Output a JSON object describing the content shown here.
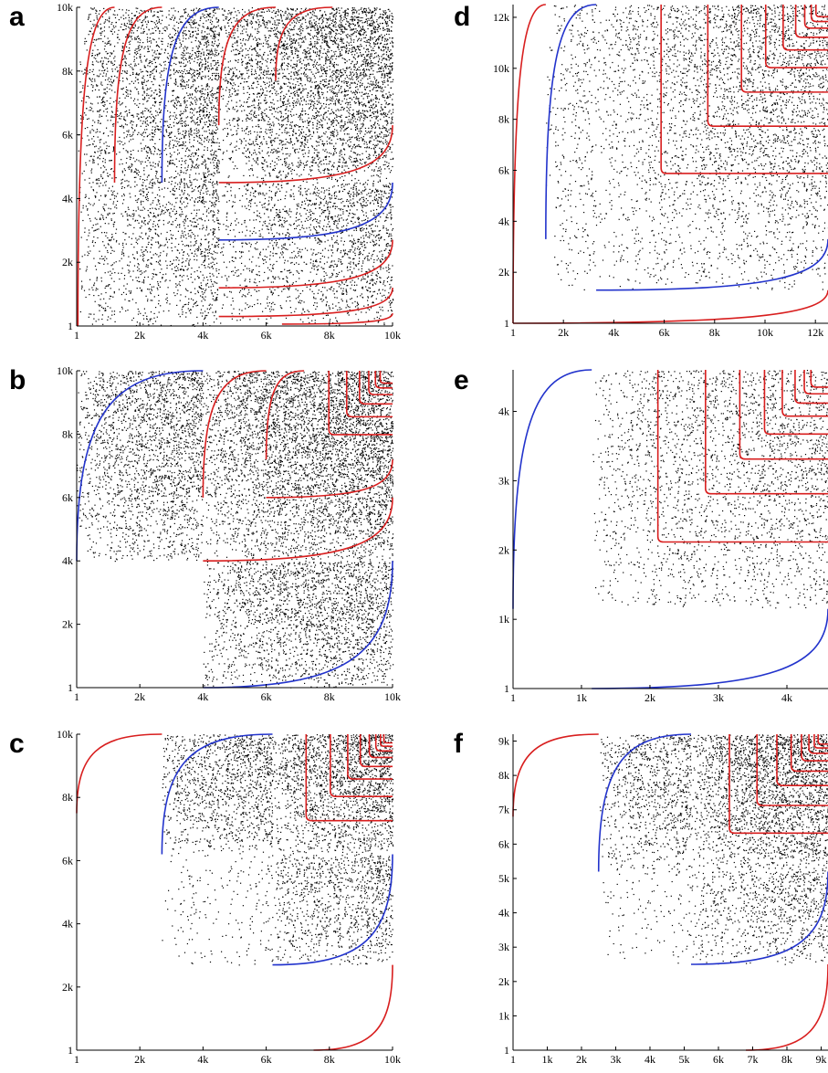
{
  "colors": {
    "red": "#d81e1e",
    "blue": "#2233cc",
    "dots": "#000000"
  },
  "chart_data": [
    {
      "panel": "a",
      "type": "scatter",
      "xlim": [
        1,
        10000
      ],
      "ylim": [
        1,
        10000
      ],
      "xticks": [
        "1",
        "2k",
        "4k",
        "6k",
        "8k",
        "10k"
      ],
      "yticks": [
        "1",
        "2k",
        "4k",
        "6k",
        "8k",
        "10k"
      ],
      "xtick_values": [
        1,
        2000,
        4000,
        6000,
        8000,
        10000
      ],
      "ytick_values": [
        1,
        2000,
        4000,
        6000,
        8000,
        10000
      ],
      "blocks": [
        {
          "x0": 50,
          "y0": 1,
          "x1": 1200,
          "y1": 10000,
          "density": 0.45
        },
        {
          "x0": 1200,
          "y0": 1,
          "x1": 2700,
          "y1": 10000,
          "density": 0.6
        },
        {
          "x0": 2700,
          "y0": 1,
          "x1": 4500,
          "y1": 10000,
          "density": 0.8
        },
        {
          "x0": 4500,
          "y0": 1,
          "x1": 10000,
          "y1": 4500,
          "density": 0.55
        },
        {
          "x0": 4500,
          "y0": 4500,
          "x1": 10000,
          "y1": 10000,
          "density": 1.0
        }
      ],
      "curves": [
        {
          "color": "red",
          "x0": 40,
          "x1": 1200,
          "y0": 1,
          "y1": 10000,
          "bend": "up"
        },
        {
          "color": "red",
          "x0": 1200,
          "x1": 2700,
          "y0": 4500,
          "y1": 10000,
          "bend": "up"
        },
        {
          "color": "blue",
          "x0": 2700,
          "x1": 4500,
          "y0": 4500,
          "y1": 10000,
          "bend": "up"
        },
        {
          "color": "red",
          "x0": 4500,
          "x1": 6300,
          "y0": 6300,
          "y1": 10000,
          "bend": "up"
        },
        {
          "color": "red",
          "x0": 6300,
          "x1": 8100,
          "y0": 7700,
          "y1": 10000,
          "bend": "up"
        },
        {
          "color": "red",
          "x0": 4500,
          "x1": 10000,
          "y0": 4500,
          "y1": 6300,
          "bend": "right"
        },
        {
          "color": "blue",
          "x0": 4500,
          "x1": 10000,
          "y0": 2700,
          "y1": 4500,
          "bend": "right"
        },
        {
          "color": "red",
          "x0": 4500,
          "x1": 10000,
          "y0": 1200,
          "y1": 2700,
          "bend": "right"
        },
        {
          "color": "red",
          "x0": 4500,
          "x1": 10000,
          "y0": 300,
          "y1": 1200,
          "bend": "right"
        },
        {
          "color": "red",
          "x0": 6500,
          "x1": 10000,
          "y0": 60,
          "y1": 400,
          "bend": "right"
        }
      ]
    },
    {
      "panel": "b",
      "type": "scatter",
      "xlim": [
        1,
        10000
      ],
      "ylim": [
        1,
        10000
      ],
      "xticks": [
        "1",
        "2k",
        "4k",
        "6k",
        "8k",
        "10k"
      ],
      "yticks": [
        "1",
        "2k",
        "4k",
        "6k",
        "8k",
        "10k"
      ],
      "xtick_values": [
        1,
        2000,
        4000,
        6000,
        8000,
        10000
      ],
      "ytick_values": [
        1,
        2000,
        4000,
        6000,
        8000,
        10000
      ],
      "blocks": [
        {
          "x0": 1,
          "y0": 4000,
          "x1": 4000,
          "y1": 10000,
          "density": 0.7
        },
        {
          "x0": 4000,
          "y0": 1,
          "x1": 10000,
          "y1": 4000,
          "density": 0.7
        },
        {
          "x0": 4000,
          "y0": 4000,
          "x1": 10000,
          "y1": 10000,
          "density": 1.0
        }
      ],
      "curves": [
        {
          "color": "blue",
          "x0": 1,
          "x1": 4000,
          "y0": 4000,
          "y1": 10000,
          "bend": "up"
        },
        {
          "color": "blue",
          "x0": 4000,
          "x1": 10000,
          "y0": 1,
          "y1": 4000,
          "bend": "right"
        },
        {
          "color": "red",
          "x0": 4000,
          "x1": 6000,
          "y0": 6000,
          "y1": 10000,
          "bend": "up"
        },
        {
          "color": "red",
          "x0": 4000,
          "x1": 10000,
          "y0": 4000,
          "y1": 6000,
          "bend": "right"
        },
        {
          "color": "red",
          "x0": 6000,
          "x1": 7200,
          "y0": 7200,
          "y1": 10000,
          "bend": "up"
        },
        {
          "color": "red",
          "x0": 6000,
          "x1": 10000,
          "y0": 6000,
          "y1": 7200,
          "bend": "right"
        }
      ],
      "nested_boxes": {
        "color": "red",
        "x_start": 7200,
        "y_start": 7200,
        "xmax": 10000,
        "ymax": 10000,
        "count": 6
      }
    },
    {
      "panel": "c",
      "type": "scatter",
      "xlim": [
        1,
        10000
      ],
      "ylim": [
        1,
        10000
      ],
      "xticks": [
        "1",
        "2k",
        "4k",
        "6k",
        "8k",
        "10k"
      ],
      "yticks": [
        "1",
        "2k",
        "4k",
        "6k",
        "8k",
        "10k"
      ],
      "xtick_values": [
        1,
        2000,
        4000,
        6000,
        8000,
        10000
      ],
      "ytick_values": [
        1,
        2000,
        4000,
        6000,
        8000,
        10000
      ],
      "blocks": [
        {
          "x0": 2700,
          "y0": 2700,
          "x1": 6200,
          "y1": 6200,
          "density": 0.12
        },
        {
          "x0": 2700,
          "y0": 6200,
          "x1": 6200,
          "y1": 10000,
          "density": 0.7
        },
        {
          "x0": 6200,
          "y0": 2700,
          "x1": 10000,
          "y1": 6200,
          "density": 0.6
        },
        {
          "x0": 6200,
          "y0": 6200,
          "x1": 10000,
          "y1": 10000,
          "density": 1.0
        }
      ],
      "curves": [
        {
          "color": "red",
          "x0": 1,
          "x1": 2700,
          "y0": 7500,
          "y1": 10000,
          "bend": "up"
        },
        {
          "color": "red",
          "x0": 7500,
          "x1": 10000,
          "y0": 1,
          "y1": 2700,
          "bend": "right"
        },
        {
          "color": "blue",
          "x0": 2700,
          "x1": 6200,
          "y0": 6200,
          "y1": 10000,
          "bend": "up"
        },
        {
          "color": "blue",
          "x0": 6200,
          "x1": 10000,
          "y0": 2700,
          "y1": 6200,
          "bend": "right"
        }
      ],
      "nested_boxes": {
        "color": "red",
        "x_start": 6200,
        "y_start": 6200,
        "xmax": 10000,
        "ymax": 10000,
        "count": 8
      }
    },
    {
      "panel": "d",
      "type": "scatter",
      "xlim": [
        1,
        12500
      ],
      "ylim": [
        1,
        12500
      ],
      "xticks": [
        "1",
        "2k",
        "4k",
        "6k",
        "8k",
        "10k",
        "12k"
      ],
      "yticks": [
        "1",
        "2k",
        "4k",
        "6k",
        "8k",
        "10k",
        "12k"
      ],
      "xtick_values": [
        1,
        2000,
        4000,
        6000,
        8000,
        10000,
        12000
      ],
      "ytick_values": [
        1,
        2000,
        4000,
        6000,
        8000,
        10000,
        12000
      ],
      "blocks": [
        {
          "x0": 1300,
          "y0": 1300,
          "x1": 3300,
          "y1": 12500,
          "density": 0.2
        },
        {
          "x0": 3300,
          "y0": 1300,
          "x1": 12500,
          "y1": 3300,
          "density": 0.2
        },
        {
          "x0": 3300,
          "y0": 3300,
          "x1": 12500,
          "y1": 12500,
          "density": 0.45
        }
      ],
      "curves": [
        {
          "color": "red",
          "x0": 1,
          "x1": 1300,
          "y0": 1,
          "y1": 12500,
          "bend": "up"
        },
        {
          "color": "red",
          "x0": 1,
          "x1": 12500,
          "y0": 1,
          "y1": 1300,
          "bend": "right"
        },
        {
          "color": "blue",
          "x0": 1300,
          "x1": 3300,
          "y0": 3300,
          "y1": 12500,
          "bend": "up"
        },
        {
          "color": "blue",
          "x0": 3300,
          "x1": 12500,
          "y0": 1300,
          "y1": 3300,
          "bend": "right"
        }
      ],
      "nested_boxes": {
        "color": "red",
        "x_start": 3300,
        "y_start": 3300,
        "xmax": 12500,
        "ymax": 12500,
        "count": 9
      }
    },
    {
      "panel": "e",
      "type": "scatter",
      "xlim": [
        1,
        4600
      ],
      "ylim": [
        1,
        4600
      ],
      "xticks": [
        "1",
        "1k",
        "2k",
        "3k",
        "4k"
      ],
      "yticks": [
        "1",
        "1k",
        "2k",
        "3k",
        "4k"
      ],
      "xtick_values": [
        1,
        1000,
        2000,
        3000,
        4000
      ],
      "ytick_values": [
        1,
        1000,
        2000,
        3000,
        4000
      ],
      "blocks": [
        {
          "x0": 1150,
          "y0": 1150,
          "x1": 4600,
          "y1": 4600,
          "density": 0.35
        }
      ],
      "curves": [
        {
          "color": "blue",
          "x0": 1,
          "x1": 1150,
          "y0": 1150,
          "y1": 4600,
          "bend": "up"
        },
        {
          "color": "blue",
          "x0": 1150,
          "x1": 4600,
          "y0": 1,
          "y1": 1150,
          "bend": "right"
        }
      ],
      "nested_boxes": {
        "color": "red",
        "x_start": 1150,
        "y_start": 1150,
        "xmax": 4600,
        "ymax": 4600,
        "count": 8
      }
    },
    {
      "panel": "f",
      "type": "scatter",
      "xlim": [
        1,
        9200
      ],
      "ylim": [
        1,
        9200
      ],
      "xticks": [
        "1",
        "1k",
        "2k",
        "3k",
        "4k",
        "5k",
        "6k",
        "7k",
        "8k",
        "9k"
      ],
      "yticks": [
        "1",
        "1k",
        "2k",
        "3k",
        "4k",
        "5k",
        "6k",
        "7k",
        "8k",
        "9k"
      ],
      "xtick_values": [
        1,
        1000,
        2000,
        3000,
        4000,
        5000,
        6000,
        7000,
        8000,
        9000
      ],
      "ytick_values": [
        1,
        1000,
        2000,
        3000,
        4000,
        5000,
        6000,
        7000,
        8000,
        9000
      ],
      "blocks": [
        {
          "x0": 2500,
          "y0": 2500,
          "x1": 5200,
          "y1": 5200,
          "density": 0.1
        },
        {
          "x0": 2500,
          "y0": 5200,
          "x1": 5200,
          "y1": 9200,
          "density": 0.55
        },
        {
          "x0": 5200,
          "y0": 2500,
          "x1": 9200,
          "y1": 5200,
          "density": 0.5
        },
        {
          "x0": 5200,
          "y0": 5200,
          "x1": 9200,
          "y1": 9200,
          "density": 1.0
        }
      ],
      "curves": [
        {
          "color": "red",
          "x0": 1,
          "x1": 2500,
          "y0": 6800,
          "y1": 9200,
          "bend": "up"
        },
        {
          "color": "red",
          "x0": 6800,
          "x1": 9200,
          "y0": 1,
          "y1": 2500,
          "bend": "right"
        },
        {
          "color": "blue",
          "x0": 2500,
          "x1": 5200,
          "y0": 5200,
          "y1": 9200,
          "bend": "up"
        },
        {
          "color": "blue",
          "x0": 5200,
          "x1": 9200,
          "y0": 2500,
          "y1": 5200,
          "bend": "right"
        }
      ],
      "nested_boxes": {
        "color": "red",
        "x_start": 5200,
        "y_start": 5200,
        "xmax": 9200,
        "ymax": 9200,
        "count": 8
      }
    }
  ]
}
